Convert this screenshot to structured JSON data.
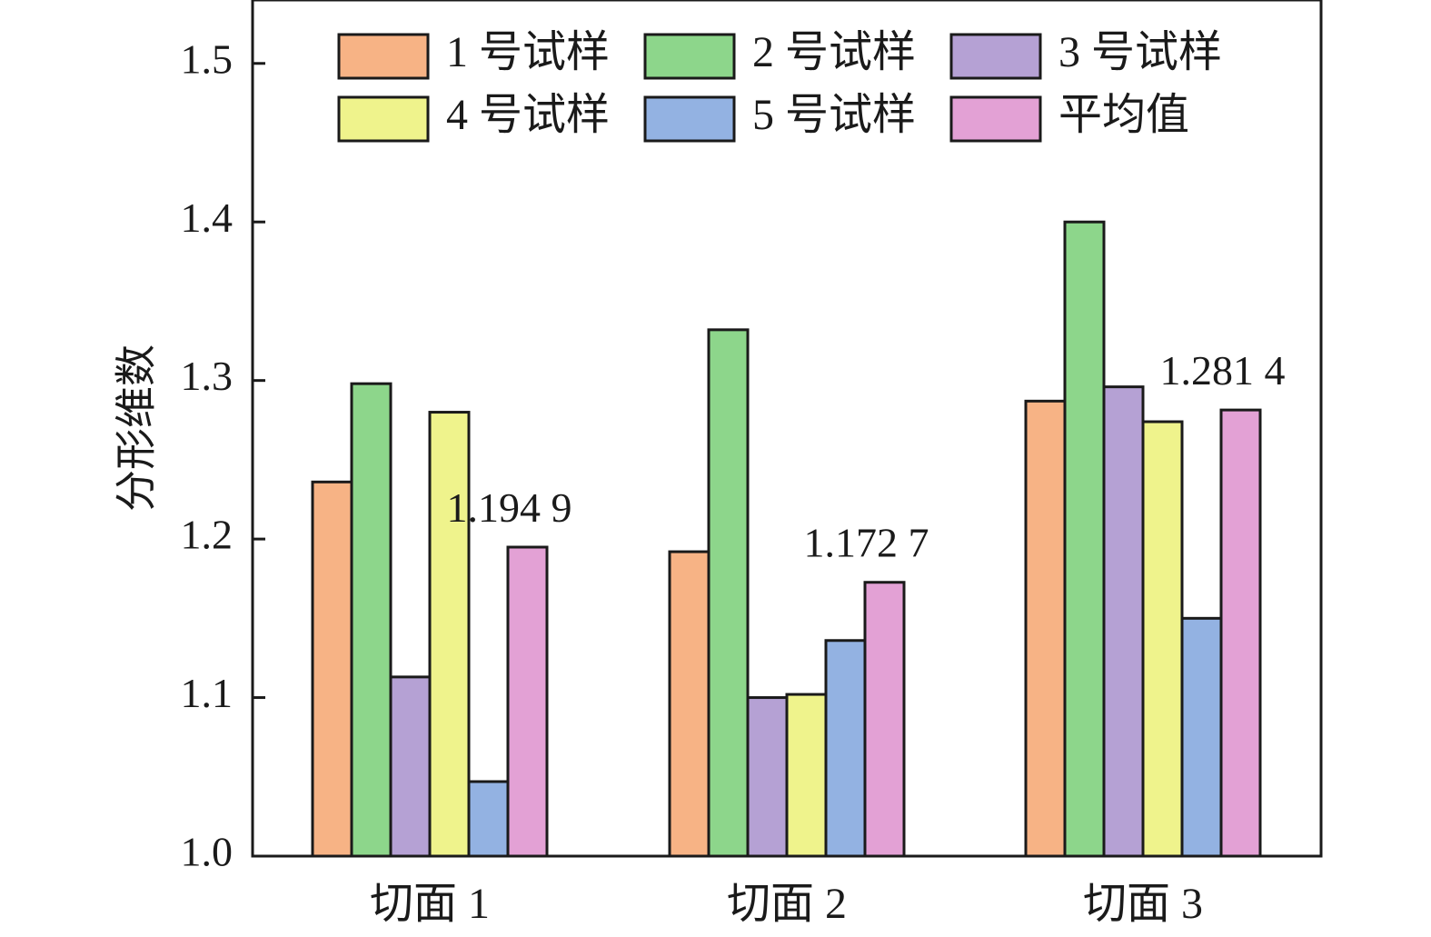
{
  "chart_data": {
    "type": "bar",
    "title": "",
    "xlabel": "",
    "ylabel": "分形维数",
    "categories": [
      "切面 1",
      "切面 2",
      "切面 3"
    ],
    "ylim": [
      1.0,
      1.54
    ],
    "yticks": [
      "1.0",
      "1.1",
      "1.2",
      "1.3",
      "1.4",
      "1.5"
    ],
    "legend_position": "top",
    "series": [
      {
        "name": "1 号试样",
        "color": "#F7B385",
        "values": [
          1.236,
          1.192,
          1.287
        ]
      },
      {
        "name": "2 号试样",
        "color": "#8DD68B",
        "values": [
          1.298,
          1.332,
          1.4
        ]
      },
      {
        "name": "3 号试样",
        "color": "#B5A1D4",
        "values": [
          1.113,
          1.1,
          1.296
        ]
      },
      {
        "name": "4 号试样",
        "color": "#EFF38C",
        "values": [
          1.28,
          1.102,
          1.274
        ]
      },
      {
        "name": "5 号试样",
        "color": "#93B2E2",
        "values": [
          1.047,
          1.136,
          1.15
        ]
      },
      {
        "name": "平均值",
        "color": "#E3A1D5",
        "values": [
          1.1949,
          1.1727,
          1.2814
        ]
      }
    ],
    "annotations": [
      "1.194 9",
      "1.172 7",
      "1.281 4"
    ],
    "grid": false
  }
}
